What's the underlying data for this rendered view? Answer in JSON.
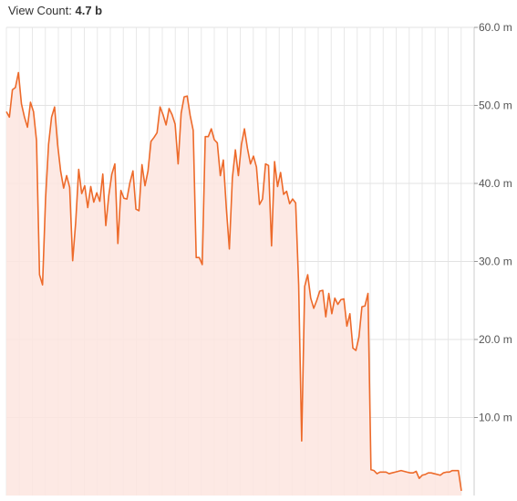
{
  "header": {
    "label": "View Count:",
    "value": "4.7 b"
  },
  "chart_data": {
    "type": "area",
    "title": "",
    "xlabel": "",
    "ylabel": "",
    "ylim": [
      0,
      60
    ],
    "y_ticks": [
      {
        "value": 60,
        "label": "60.0 m"
      },
      {
        "value": 50,
        "label": "50.0 m"
      },
      {
        "value": 40,
        "label": "40.0 m"
      },
      {
        "value": 30,
        "label": "30.0 m"
      },
      {
        "value": 20,
        "label": "20.0 m"
      },
      {
        "value": 10,
        "label": "10.0 m"
      }
    ],
    "y_axis_side": "right",
    "grid": true,
    "line_color": "#ed6a2a",
    "fill_color": "#fde5df",
    "series": [
      {
        "values": [
          49.2,
          48.5,
          52.0,
          52.3,
          54.2,
          50.2,
          48.5,
          47.2,
          50.4,
          49.2,
          45.5,
          28.3,
          27.0,
          38.0,
          45.0,
          48.5,
          49.8,
          45.0,
          41.6,
          39.4,
          41.0,
          39.5,
          30.1,
          35.0,
          41.8,
          38.7,
          39.7,
          36.9,
          39.6,
          37.6,
          38.8,
          37.7,
          41.2,
          34.6,
          38.5,
          41.2,
          42.5,
          32.3,
          39.1,
          38.1,
          38.0,
          40.1,
          41.6,
          36.7,
          36.5,
          42.4,
          39.7,
          41.6,
          45.4,
          45.9,
          46.5,
          49.8,
          48.8,
          47.5,
          49.6,
          48.8,
          47.6,
          42.5,
          49.0,
          51.1,
          51.2,
          48.7,
          46.8,
          30.5,
          30.5,
          29.6,
          46.0,
          46.0,
          47.0,
          45.6,
          45.2,
          41.0,
          43.0,
          36.8,
          31.6,
          40.7,
          44.3,
          41.0,
          45.0,
          47.0,
          44.5,
          42.5,
          43.5,
          42.1,
          37.3,
          38.0,
          42.5,
          42.3,
          32.0,
          42.8,
          39.6,
          41.4,
          38.6,
          39.0,
          37.4,
          38.0,
          37.5,
          27.0,
          7.0,
          26.8,
          28.3,
          25.3,
          24.0,
          25.0,
          26.2,
          26.3,
          22.9,
          25.9,
          23.3,
          25.3,
          24.5,
          25.1,
          25.2,
          21.7,
          23.3,
          18.9,
          18.6,
          20.3,
          24.2,
          24.3,
          25.9,
          3.3,
          3.2,
          2.8,
          3.0,
          3.0,
          3.0,
          2.8,
          2.9,
          3.0,
          3.1,
          3.2,
          3.1,
          3.0,
          2.9,
          2.9,
          3.1,
          2.2,
          2.6,
          2.7,
          2.9,
          2.9,
          2.8,
          2.7,
          2.6,
          2.9,
          3.0,
          3.0,
          3.2,
          3.2,
          3.2,
          0.6
        ]
      }
    ]
  }
}
